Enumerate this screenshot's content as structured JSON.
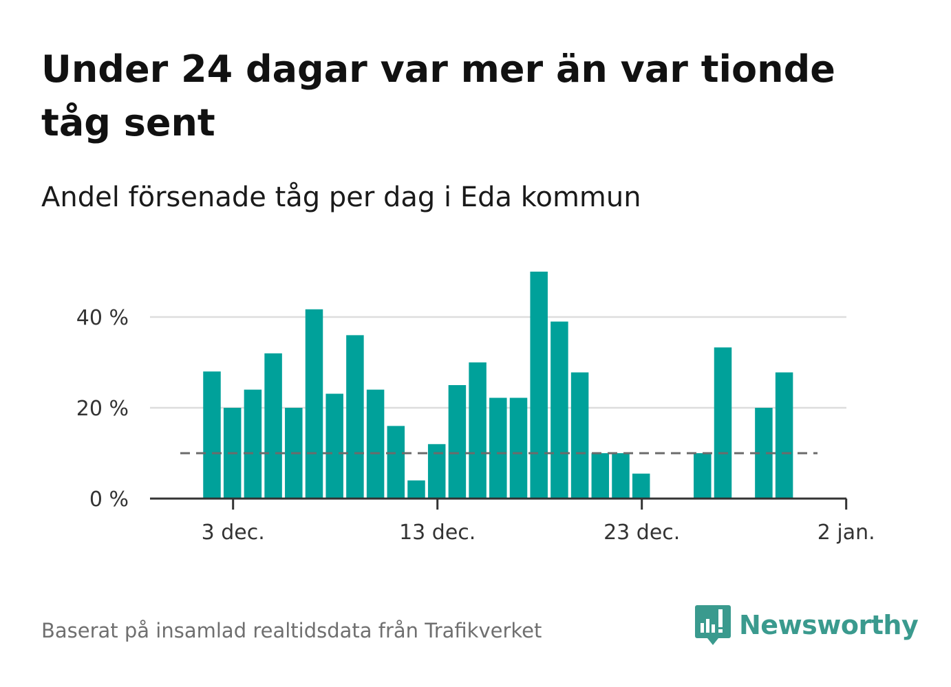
{
  "title": "Under 24 dagar var mer än var tionde tåg sent",
  "subtitle": "Andel försenade tåg per dag i Eda kommun",
  "footer": "Baserat på insamlad realtidsdata från Trafikverket",
  "brand": {
    "name": "Newsworthy",
    "icon": "newsworthy-logo-icon",
    "color": "#3a9a8e"
  },
  "chart_data": {
    "type": "bar",
    "x_axis": {
      "tick_labels": [
        "3 dec.",
        "13 dec.",
        "23 dec.",
        "2 jan."
      ],
      "range": [
        "2 dec.",
        "2 jan."
      ]
    },
    "y_axis": {
      "tick_labels": [
        "0 %",
        "20 %",
        "40 %"
      ],
      "ticks": [
        0,
        20,
        40
      ],
      "ylim": [
        0,
        52
      ],
      "grid": true
    },
    "bar_color": "#00a19a",
    "reference_line": {
      "value": 10,
      "style": "dashed",
      "color": "#6b6b6b"
    },
    "bars": [
      {
        "day": "2 dec.",
        "value": 28
      },
      {
        "day": "3 dec.",
        "value": 20
      },
      {
        "day": "4 dec.",
        "value": 24
      },
      {
        "day": "5 dec.",
        "value": 32
      },
      {
        "day": "6 dec.",
        "value": 20
      },
      {
        "day": "7 dec.",
        "value": 41.7
      },
      {
        "day": "8 dec.",
        "value": 23.1
      },
      {
        "day": "9 dec.",
        "value": 36
      },
      {
        "day": "10 dec.",
        "value": 24
      },
      {
        "day": "11 dec.",
        "value": 16
      },
      {
        "day": "12 dec.",
        "value": 4
      },
      {
        "day": "13 dec.",
        "value": 12
      },
      {
        "day": "14 dec.",
        "value": 25
      },
      {
        "day": "15 dec.",
        "value": 30
      },
      {
        "day": "16 dec.",
        "value": 22.2
      },
      {
        "day": "17 dec.",
        "value": 22.2
      },
      {
        "day": "18 dec.",
        "value": 50
      },
      {
        "day": "19 dec.",
        "value": 39
      },
      {
        "day": "20 dec.",
        "value": 27.8
      },
      {
        "day": "21 dec.",
        "value": 10
      },
      {
        "day": "22 dec.",
        "value": 10
      },
      {
        "day": "23 dec.",
        "value": 5.5
      },
      {
        "day": "24 dec.",
        "value": 0
      },
      {
        "day": "25 dec.",
        "value": 0
      },
      {
        "day": "26 dec.",
        "value": 10
      },
      {
        "day": "27 dec.",
        "value": 33.3
      },
      {
        "day": "28 dec.",
        "value": 0
      },
      {
        "day": "29 dec.",
        "value": 20
      },
      {
        "day": "30 dec.",
        "value": 27.8
      }
    ]
  }
}
